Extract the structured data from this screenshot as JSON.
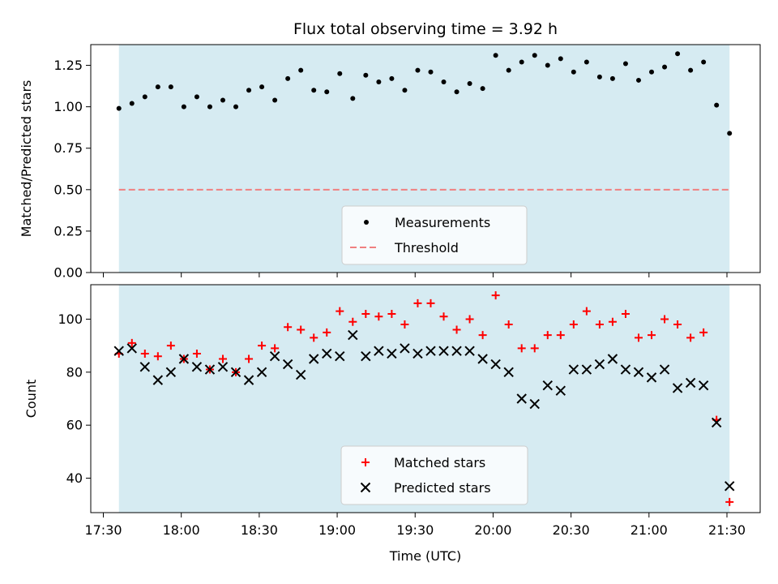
{
  "chart_data": [
    {
      "type": "scatter",
      "title": "Flux total observing time = 3.92 h",
      "xlabel": "",
      "ylabel": "Matched/Predicted stars",
      "ylim": [
        0,
        1.375
      ],
      "yticks": [
        "0.00",
        "0.25",
        "0.50",
        "0.75",
        "1.00",
        "1.25"
      ],
      "grid": false,
      "legend_position": "bottom-center",
      "shaded_span_color": "#add8e6",
      "series": [
        {
          "name": "Measurements",
          "color": "#000000",
          "x": [
            "17:36",
            "17:41",
            "17:46",
            "17:51",
            "17:56",
            "18:01",
            "18:06",
            "18:11",
            "18:16",
            "18:21",
            "18:26",
            "18:31",
            "18:36",
            "18:41",
            "18:46",
            "18:51",
            "18:56",
            "19:01",
            "19:06",
            "19:11",
            "19:16",
            "19:21",
            "19:26",
            "19:31",
            "19:36",
            "19:41",
            "19:46",
            "19:51",
            "19:56",
            "20:01",
            "20:06",
            "20:11",
            "20:16",
            "20:21",
            "20:26",
            "20:31",
            "20:36",
            "20:41",
            "20:46",
            "20:51",
            "20:56",
            "21:01",
            "21:06",
            "21:11",
            "21:16",
            "21:21",
            "21:26",
            "21:31"
          ],
          "values": [
            0.99,
            1.02,
            1.06,
            1.12,
            1.12,
            1.0,
            1.06,
            1.0,
            1.04,
            1.0,
            1.1,
            1.12,
            1.04,
            1.17,
            1.22,
            1.1,
            1.09,
            1.2,
            1.05,
            1.19,
            1.15,
            1.17,
            1.1,
            1.22,
            1.21,
            1.15,
            1.09,
            1.14,
            1.11,
            1.31,
            1.22,
            1.27,
            1.31,
            1.25,
            1.29,
            1.21,
            1.27,
            1.18,
            1.17,
            1.26,
            1.16,
            1.21,
            1.24,
            1.32,
            1.22,
            1.27,
            1.01,
            0.84
          ]
        },
        {
          "name": "Threshold",
          "color": "#f08080",
          "style": "dashed",
          "value": 0.5
        }
      ]
    },
    {
      "type": "scatter",
      "title": "",
      "xlabel": "Time (UTC)",
      "ylabel": "Count",
      "ylim": [
        27,
        113
      ],
      "yticks": [
        "40",
        "60",
        "80",
        "100"
      ],
      "xticks": [
        "17:30",
        "18:00",
        "18:30",
        "19:00",
        "19:30",
        "20:00",
        "20:30",
        "21:00",
        "21:30"
      ],
      "grid": false,
      "legend_position": "bottom-center",
      "shaded_span_color": "#add8e6",
      "series": [
        {
          "name": "Matched stars",
          "color": "#ff0000",
          "marker": "+",
          "x": [
            "17:36",
            "17:41",
            "17:46",
            "17:51",
            "17:56",
            "18:01",
            "18:06",
            "18:11",
            "18:16",
            "18:21",
            "18:26",
            "18:31",
            "18:36",
            "18:41",
            "18:46",
            "18:51",
            "18:56",
            "19:01",
            "19:06",
            "19:11",
            "19:16",
            "19:21",
            "19:26",
            "19:31",
            "19:36",
            "19:41",
            "19:46",
            "19:51",
            "19:56",
            "20:01",
            "20:06",
            "20:11",
            "20:16",
            "20:21",
            "20:26",
            "20:31",
            "20:36",
            "20:41",
            "20:46",
            "20:51",
            "20:56",
            "21:01",
            "21:06",
            "21:11",
            "21:16",
            "21:21",
            "21:26",
            "21:31"
          ],
          "values": [
            87,
            91,
            87,
            86,
            90,
            85,
            87,
            81,
            85,
            80,
            85,
            90,
            89,
            97,
            96,
            93,
            95,
            103,
            99,
            102,
            101,
            102,
            98,
            106,
            106,
            101,
            96,
            100,
            94,
            109,
            98,
            89,
            89,
            94,
            94,
            98,
            103,
            98,
            99,
            102,
            93,
            94,
            100,
            98,
            93,
            95,
            62,
            31
          ]
        },
        {
          "name": "Predicted stars",
          "color": "#000000",
          "marker": "x",
          "x": [
            "17:36",
            "17:41",
            "17:46",
            "17:51",
            "17:56",
            "18:01",
            "18:06",
            "18:11",
            "18:16",
            "18:21",
            "18:26",
            "18:31",
            "18:36",
            "18:41",
            "18:46",
            "18:51",
            "18:56",
            "19:01",
            "19:06",
            "19:11",
            "19:16",
            "19:21",
            "19:26",
            "19:31",
            "19:36",
            "19:41",
            "19:46",
            "19:51",
            "19:56",
            "20:01",
            "20:06",
            "20:11",
            "20:16",
            "20:21",
            "20:26",
            "20:31",
            "20:36",
            "20:41",
            "20:46",
            "20:51",
            "20:56",
            "21:01",
            "21:06",
            "21:11",
            "21:16",
            "21:21",
            "21:26",
            "21:31"
          ],
          "values": [
            88,
            89,
            82,
            77,
            80,
            85,
            82,
            81,
            82,
            80,
            77,
            80,
            86,
            83,
            79,
            85,
            87,
            86,
            94,
            86,
            88,
            87,
            89,
            87,
            88,
            88,
            88,
            88,
            85,
            83,
            80,
            70,
            68,
            75,
            73,
            81,
            81,
            83,
            85,
            81,
            80,
            78,
            81,
            74,
            76,
            75,
            61,
            37
          ]
        }
      ]
    }
  ]
}
